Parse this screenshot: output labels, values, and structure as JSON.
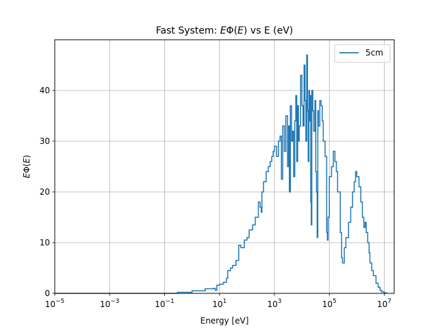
{
  "chart_data": {
    "type": "line",
    "title": "Fast System: EΦ(E) vs E (eV)",
    "title_parts": {
      "prefix": "Fast System: ",
      "math_E1": "E",
      "phi_open": "Φ(",
      "math_E2": "E",
      "suffix": ") vs E (eV)"
    },
    "xlabel": "Energy [eV]",
    "ylabel_parts": {
      "math_E1": "E",
      "phi_open": "Φ(",
      "math_E2": "E",
      "close": ")"
    },
    "x_scale": "log",
    "xlim": [
      1e-05,
      23000000.0
    ],
    "ylim": [
      0,
      50
    ],
    "grid": true,
    "legend_position": "top-right",
    "line_color": "#1f77b4",
    "x_ticks": [
      {
        "value": 1e-05,
        "base": "10",
        "exp": "−5"
      },
      {
        "value": 0.001,
        "base": "10",
        "exp": "−3"
      },
      {
        "value": 0.1,
        "base": "10",
        "exp": "−1"
      },
      {
        "value": 10,
        "base": "10",
        "exp": "1"
      },
      {
        "value": 1000,
        "base": "10",
        "exp": "3"
      },
      {
        "value": 100000,
        "base": "10",
        "exp": "5"
      },
      {
        "value": 10000000,
        "base": "10",
        "exp": "7"
      }
    ],
    "y_ticks": [
      0,
      10,
      20,
      30,
      40
    ],
    "series": [
      {
        "name": "5cm",
        "points": [
          [
            1e-05,
            0
          ],
          [
            0.1,
            0
          ],
          [
            0.3,
            0.2
          ],
          [
            1,
            0.5
          ],
          [
            3,
            0.9
          ],
          [
            6,
            1.0
          ],
          [
            7,
            0.6
          ],
          [
            8,
            1.6
          ],
          [
            10,
            1.8
          ],
          [
            14,
            2.2
          ],
          [
            18,
            3.0
          ],
          [
            20,
            4.5
          ],
          [
            25,
            5.0
          ],
          [
            30,
            5.5
          ],
          [
            40,
            6.5
          ],
          [
            50,
            9.5
          ],
          [
            60,
            9.0
          ],
          [
            80,
            10.5
          ],
          [
            100,
            11.0
          ],
          [
            120,
            12.5
          ],
          [
            160,
            13.5
          ],
          [
            200,
            15
          ],
          [
            260,
            18
          ],
          [
            300,
            17
          ],
          [
            330,
            16
          ],
          [
            350,
            20
          ],
          [
            400,
            22
          ],
          [
            500,
            24
          ],
          [
            600,
            25
          ],
          [
            700,
            26
          ],
          [
            800,
            27
          ],
          [
            900,
            28
          ],
          [
            1000,
            29
          ],
          [
            1200,
            27
          ],
          [
            1400,
            30
          ],
          [
            1600,
            31
          ],
          [
            1800,
            22.5
          ],
          [
            2000,
            33
          ],
          [
            2300,
            28
          ],
          [
            2600,
            35
          ],
          [
            3000,
            25
          ],
          [
            3300,
            33
          ],
          [
            3500,
            20
          ],
          [
            3800,
            37
          ],
          [
            4200,
            30
          ],
          [
            4600,
            32
          ],
          [
            5000,
            23
          ],
          [
            5500,
            34
          ],
          [
            6000,
            39
          ],
          [
            6500,
            26
          ],
          [
            7000,
            37
          ],
          [
            7500,
            30
          ],
          [
            8000,
            33
          ],
          [
            9000,
            43
          ],
          [
            10000,
            37
          ],
          [
            11000,
            33
          ],
          [
            12000,
            45
          ],
          [
            13000,
            38
          ],
          [
            14000,
            30
          ],
          [
            15000,
            47
          ],
          [
            16000,
            36
          ],
          [
            17000,
            26
          ],
          [
            18000,
            40
          ],
          [
            19000,
            34
          ],
          [
            20000,
            39
          ],
          [
            21000,
            18
          ],
          [
            22000,
            13.5
          ],
          [
            23000,
            40
          ],
          [
            25000,
            36
          ],
          [
            27000,
            32
          ],
          [
            30000,
            38
          ],
          [
            32000,
            24
          ],
          [
            34000,
            20
          ],
          [
            36000,
            11
          ],
          [
            38000,
            36
          ],
          [
            40000,
            33
          ],
          [
            45000,
            38
          ],
          [
            50000,
            37
          ],
          [
            55000,
            34
          ],
          [
            60000,
            30
          ],
          [
            70000,
            27
          ],
          [
            80000,
            12
          ],
          [
            85000,
            10.5
          ],
          [
            90000,
            15
          ],
          [
            100000,
            23
          ],
          [
            120000,
            25
          ],
          [
            140000,
            28
          ],
          [
            160000,
            26
          ],
          [
            180000,
            24
          ],
          [
            200000,
            20
          ],
          [
            250000,
            12
          ],
          [
            280000,
            7
          ],
          [
            300000,
            6
          ],
          [
            350000,
            9
          ],
          [
            400000,
            11
          ],
          [
            500000,
            14
          ],
          [
            600000,
            17
          ],
          [
            700000,
            20
          ],
          [
            800000,
            22
          ],
          [
            900000,
            24
          ],
          [
            1000000,
            23
          ],
          [
            1200000,
            21
          ],
          [
            1400000,
            18
          ],
          [
            1600000,
            15
          ],
          [
            1800000,
            13
          ],
          [
            2000000,
            14
          ],
          [
            2200000,
            12
          ],
          [
            2500000,
            10
          ],
          [
            2800000,
            8
          ],
          [
            3000000,
            6
          ],
          [
            3500000,
            4.5
          ],
          [
            4000000,
            3.5
          ],
          [
            5000000,
            2
          ],
          [
            6000000,
            1.2
          ],
          [
            7000000,
            0.6
          ],
          [
            8000000,
            0.3
          ],
          [
            10000000,
            0.1
          ],
          [
            12000000,
            0
          ]
        ]
      }
    ]
  }
}
